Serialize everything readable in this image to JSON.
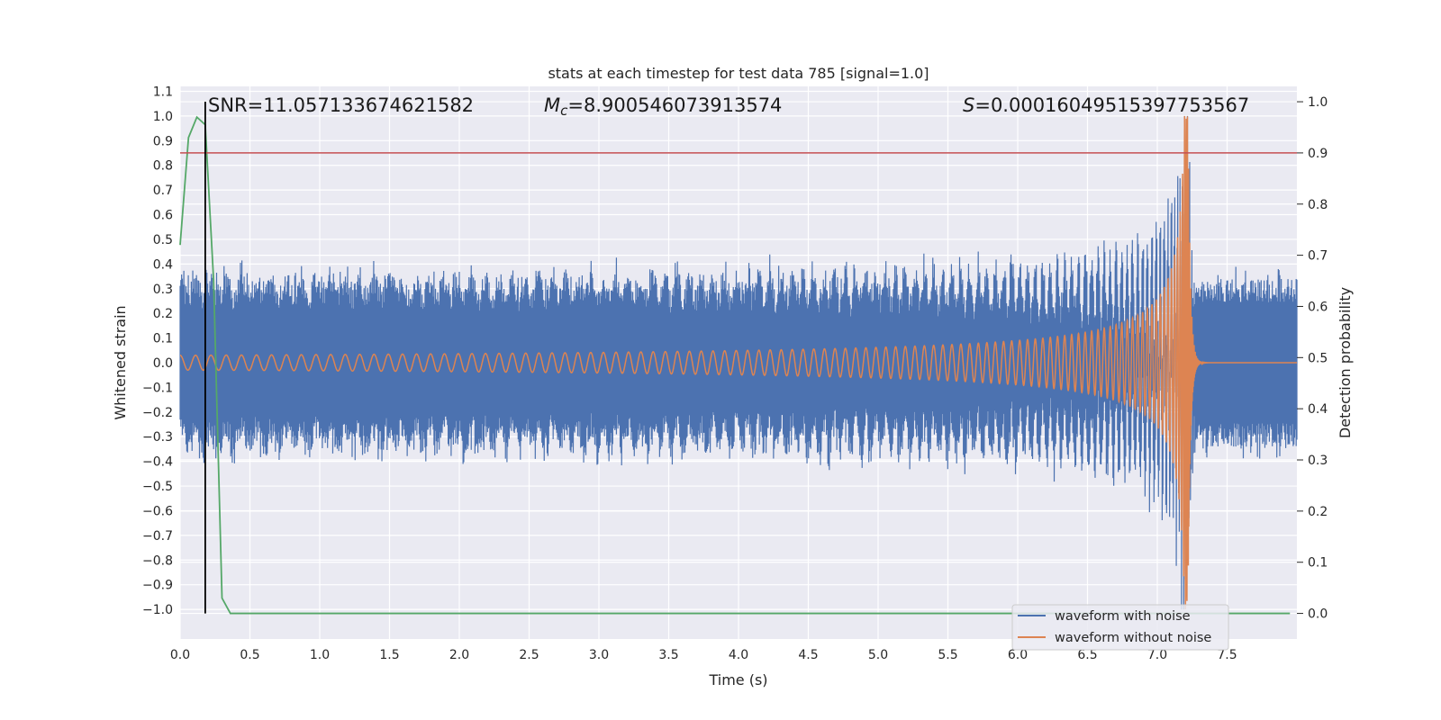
{
  "chart_data": {
    "type": "line",
    "title": "stats at each timestep for test data 785 [signal=1.0]",
    "xlabel": "Time (s)",
    "ylabel_left": "Whitened strain",
    "ylabel_right": "Detection probability",
    "xlim": [
      0.0,
      8.0
    ],
    "ylim_left": [
      -1.12,
      1.12
    ],
    "ylim_right": [
      -0.05,
      1.03
    ],
    "x_ticks": [
      "0.0",
      "0.5",
      "1.0",
      "1.5",
      "2.0",
      "2.5",
      "3.0",
      "3.5",
      "4.0",
      "4.5",
      "5.0",
      "5.5",
      "6.0",
      "6.5",
      "7.0",
      "7.5"
    ],
    "x_tick_values": [
      0.0,
      0.5,
      1.0,
      1.5,
      2.0,
      2.5,
      3.0,
      3.5,
      4.0,
      4.5,
      5.0,
      5.5,
      6.0,
      6.5,
      7.0,
      7.5
    ],
    "y_left_ticks": [
      "1.1",
      "1.0",
      "0.9",
      "0.8",
      "0.7",
      "0.6",
      "0.5",
      "0.4",
      "0.3",
      "0.2",
      "0.1",
      "0.0",
      "−0.1",
      "−0.2",
      "−0.3",
      "−0.4",
      "−0.5",
      "−0.6",
      "−0.7",
      "−0.8",
      "−0.9",
      "−1.0"
    ],
    "y_left_tick_values": [
      1.1,
      1.0,
      0.9,
      0.8,
      0.7,
      0.6,
      0.5,
      0.4,
      0.3,
      0.2,
      0.1,
      0.0,
      -0.1,
      -0.2,
      -0.3,
      -0.4,
      -0.5,
      -0.6,
      -0.7,
      -0.8,
      -0.9,
      -1.0
    ],
    "y_right_ticks": [
      "1.0",
      "0.9",
      "0.8",
      "0.7",
      "0.6",
      "0.5",
      "0.4",
      "0.3",
      "0.2",
      "0.1",
      "0.0"
    ],
    "y_right_tick_values": [
      1.0,
      0.9,
      0.8,
      0.7,
      0.6,
      0.5,
      0.4,
      0.3,
      0.2,
      0.1,
      0.0
    ],
    "annotations": {
      "snr": "SNR=11.057133674621582",
      "mc_symbol": "M",
      "mc_sub": "c",
      "mc_value": "=8.900546073913574",
      "s_symbol": "S",
      "s_value": "=0.00016049515397753567"
    },
    "series": [
      {
        "name": "waveform with noise",
        "color": "#4c72b0",
        "noise_amplitude": 0.34,
        "noise_spike_max": 0.39,
        "axis": "left"
      },
      {
        "name": "waveform without noise",
        "color": "#dd8452",
        "chirp_start_amplitude": 0.03,
        "merger_time": 7.22,
        "peak_amplitude": 1.0,
        "axis": "left"
      },
      {
        "name": "detection probability",
        "color": "#55a868",
        "axis": "right",
        "x": [
          0.0,
          0.06,
          0.12,
          0.18,
          0.24,
          0.3,
          0.36,
          0.42,
          7.95
        ],
        "values": [
          0.72,
          0.93,
          0.97,
          0.955,
          0.65,
          0.03,
          0.0,
          0.0,
          0.0
        ]
      }
    ],
    "threshold_line": {
      "value": 0.9,
      "axis": "right",
      "color": "#c44e52"
    },
    "vertical_marker": {
      "x": 0.18,
      "color": "#000000"
    },
    "legend": {
      "location": "lower-right",
      "entries": [
        "waveform with noise",
        "waveform without noise"
      ]
    },
    "background_color": "#eaeaf2",
    "grid": true
  }
}
